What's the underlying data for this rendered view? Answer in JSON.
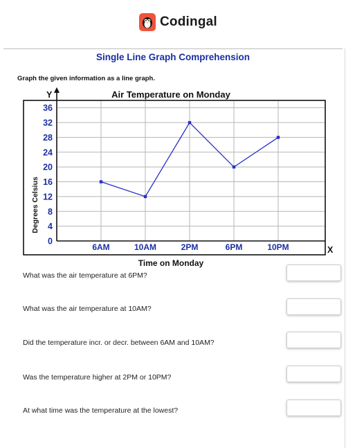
{
  "brand": {
    "name": "Codingal"
  },
  "header": {
    "title": "Single Line Graph Comprehension"
  },
  "instruction": "Graph the given information as a line graph.",
  "chart_data": {
    "type": "line",
    "title": "Air Temperature on Monday",
    "xlabel": "Time on Monday",
    "ylabel": "Degrees Celsius",
    "x_axis_letter": "X",
    "y_axis_letter": "Y",
    "categories": [
      "6AM",
      "10AM",
      "2PM",
      "6PM",
      "10PM"
    ],
    "series": [
      {
        "values": [
          16,
          12,
          32,
          20,
          28
        ]
      }
    ],
    "yticks": [
      0,
      4,
      8,
      12,
      16,
      20,
      24,
      28,
      32,
      36
    ],
    "ylim": [
      0,
      38
    ],
    "grid": true,
    "colors": {
      "line": "#2630c9",
      "tick_labels": "#1b2fa3",
      "grid": "#b5b5b5"
    }
  },
  "questions": [
    {
      "text": "What was the air temperature at 6PM?",
      "answer": ""
    },
    {
      "text": "What was the air temperature at 10AM?",
      "answer": ""
    },
    {
      "text": "Did the temperature incr. or decr. between 6AM and 10AM?",
      "answer": ""
    },
    {
      "text": "Was the temperature higher at 2PM or 10PM?",
      "answer": ""
    },
    {
      "text": "At what time was the temperature at the lowest?",
      "answer": ""
    }
  ]
}
